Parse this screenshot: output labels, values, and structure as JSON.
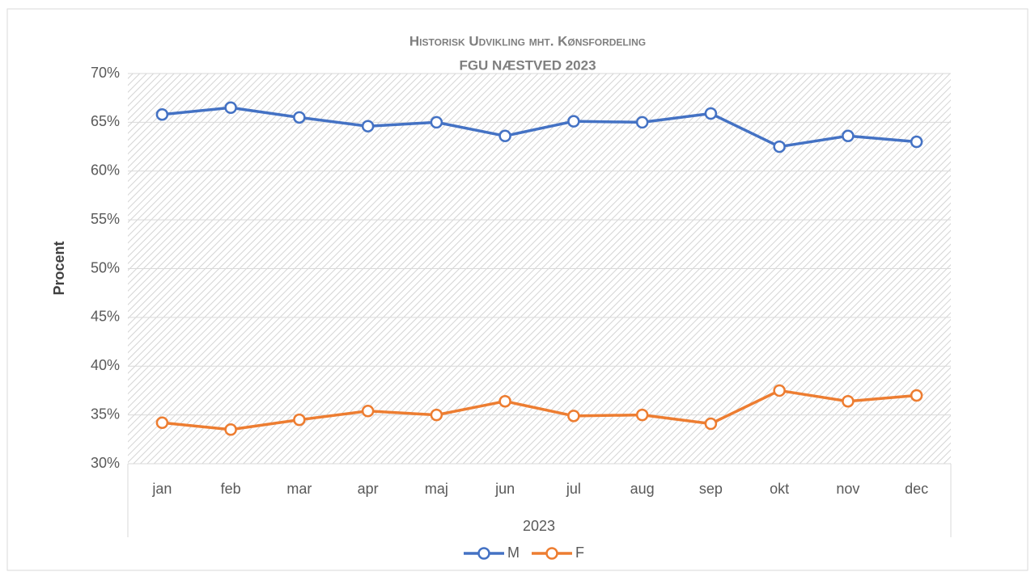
{
  "chart_data": {
    "type": "line",
    "title": "Historisk Udvikling mht. Kønsfordeling",
    "subtitle": "FGU NÆSTVED 2023",
    "x_label": "2023",
    "y_label": "Procent",
    "categories": [
      "jan",
      "feb",
      "mar",
      "apr",
      "maj",
      "jun",
      "jul",
      "aug",
      "sep",
      "okt",
      "nov",
      "dec"
    ],
    "series": [
      {
        "name": "M",
        "color": "#4472c4",
        "values": [
          65.8,
          66.5,
          65.5,
          64.6,
          65.0,
          63.6,
          65.1,
          65.0,
          65.9,
          62.5,
          63.6,
          63.0
        ]
      },
      {
        "name": "F",
        "color": "#ed7d31",
        "values": [
          34.2,
          33.5,
          34.5,
          35.4,
          35.0,
          36.4,
          34.9,
          35.0,
          34.1,
          37.5,
          36.4,
          37.0
        ]
      }
    ],
    "ylim": [
      30,
      70
    ],
    "yticks": [
      {
        "value": 30,
        "label": "30%"
      },
      {
        "value": 35,
        "label": "35%"
      },
      {
        "value": 40,
        "label": "40%"
      },
      {
        "value": 45,
        "label": "45%"
      },
      {
        "value": 50,
        "label": "50%"
      },
      {
        "value": 55,
        "label": "55%"
      },
      {
        "value": 60,
        "label": "60%"
      },
      {
        "value": 65,
        "label": "65%"
      },
      {
        "value": 70,
        "label": "70%"
      }
    ],
    "grid": true,
    "legend": "bottom"
  }
}
